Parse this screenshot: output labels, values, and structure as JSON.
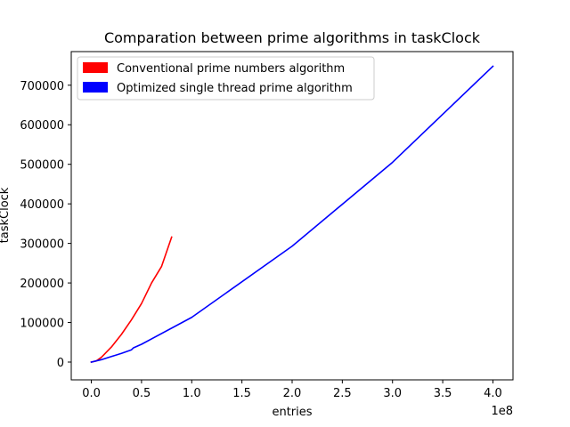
{
  "chart_data": {
    "type": "line",
    "title": "Comparation between prime algorithms in taskClock",
    "xlabel": "entries",
    "ylabel": "taskClock",
    "x_offset_label": "1e8",
    "xlim": [
      -0.2,
      4.2
    ],
    "ylim": [
      -45000,
      785000
    ],
    "x_ticks": [
      0.0,
      0.5,
      1.0,
      1.5,
      2.0,
      2.5,
      3.0,
      3.5,
      4.0
    ],
    "x_tick_labels": [
      "0.0",
      "0.5",
      "1.0",
      "1.5",
      "2.0",
      "2.5",
      "3.0",
      "3.5",
      "4.0"
    ],
    "y_ticks": [
      0,
      100000,
      200000,
      300000,
      400000,
      500000,
      600000,
      700000
    ],
    "y_tick_labels": [
      "0",
      "100000",
      "200000",
      "300000",
      "400000",
      "500000",
      "600000",
      "700000"
    ],
    "grid": false,
    "legend_position": "top-left",
    "series": [
      {
        "name": "Conventional prime numbers algorithm",
        "color": "#ff0000",
        "x": [
          0.0,
          0.05,
          0.1,
          0.2,
          0.3,
          0.4,
          0.5,
          0.6,
          0.7,
          0.8
        ],
        "y": [
          0,
          3000,
          12000,
          38000,
          70000,
          107000,
          148000,
          200000,
          242000,
          316000
        ]
      },
      {
        "name": "Optimized single thread prime algorithm",
        "color": "#0000ff",
        "x": [
          0.0,
          0.1,
          0.2,
          0.3,
          0.4,
          0.42,
          0.5,
          1.0,
          2.0,
          3.0,
          4.0
        ],
        "y": [
          0,
          6000,
          14000,
          22000,
          31000,
          36000,
          45000,
          113000,
          293000,
          505000,
          748000
        ]
      }
    ]
  }
}
